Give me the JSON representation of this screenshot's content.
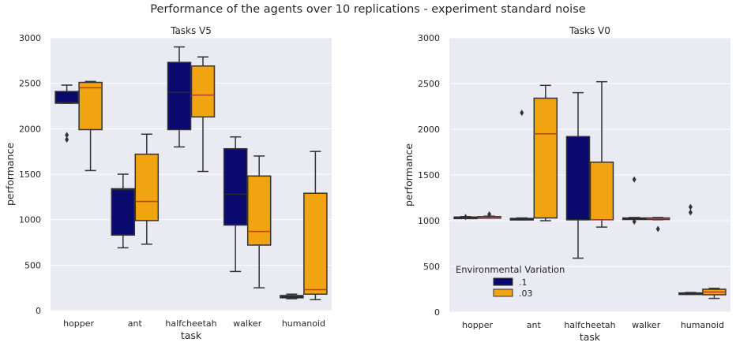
{
  "suptitle": "Performance of the agents over 10 replications - experiment standard noise",
  "colors": {
    "series1": "#0a0a6e",
    "series2": "#f0a510",
    "axes_bg": "#eaeaf2",
    "grid": "#ffffff",
    "median_series2": "#c0392b",
    "whisker": "#333333"
  },
  "legend": {
    "title": "Environmental Variation",
    "items": [
      {
        "label": ".1",
        "color": "#0a0a6e"
      },
      {
        "label": ".03",
        "color": "#f0a510"
      }
    ]
  },
  "chart_data": [
    {
      "type": "box",
      "title": "Tasks V5",
      "xlabel": "task",
      "ylabel": "performance",
      "ylim": [
        0,
        3000
      ],
      "yticks": [
        0,
        500,
        1000,
        1500,
        2000,
        2500,
        3000
      ],
      "categories": [
        "hopper",
        "ant",
        "halfcheetah",
        "walker",
        "humanoid"
      ],
      "series": [
        {
          "name": ".1",
          "boxes": [
            {
              "whislo": 2280,
              "q1": 2280,
              "med": 2290,
              "q3": 2410,
              "whishi": 2480,
              "fliers": [
                1880,
                1930
              ]
            },
            {
              "whislo": 690,
              "q1": 830,
              "med": 1330,
              "q3": 1340,
              "whishi": 1500,
              "fliers": []
            },
            {
              "whislo": 1800,
              "q1": 1990,
              "med": 2400,
              "q3": 2730,
              "whishi": 2900,
              "fliers": []
            },
            {
              "whislo": 430,
              "q1": 940,
              "med": 1280,
              "q3": 1780,
              "whishi": 1910,
              "fliers": []
            },
            {
              "whislo": 130,
              "q1": 140,
              "med": 150,
              "q3": 165,
              "whishi": 180,
              "fliers": []
            }
          ]
        },
        {
          "name": ".03",
          "boxes": [
            {
              "whislo": 1540,
              "q1": 1990,
              "med": 2450,
              "q3": 2510,
              "whishi": 2520,
              "fliers": []
            },
            {
              "whislo": 730,
              "q1": 990,
              "med": 1200,
              "q3": 1720,
              "whishi": 1940,
              "fliers": []
            },
            {
              "whislo": 1530,
              "q1": 2130,
              "med": 2370,
              "q3": 2690,
              "whishi": 2790,
              "fliers": []
            },
            {
              "whislo": 250,
              "q1": 720,
              "med": 870,
              "q3": 1480,
              "whishi": 1700,
              "fliers": []
            },
            {
              "whislo": 120,
              "q1": 180,
              "med": 230,
              "q3": 1290,
              "whishi": 1750,
              "fliers": []
            }
          ]
        }
      ]
    },
    {
      "type": "box",
      "title": "Tasks V0",
      "xlabel": "task",
      "ylabel": "performance",
      "ylim": [
        0,
        3000
      ],
      "yticks": [
        0,
        500,
        1000,
        1500,
        2000,
        2500,
        3000
      ],
      "categories": [
        "hopper",
        "ant",
        "halfcheetah",
        "walker",
        "humanoid"
      ],
      "legend_position": "lower-left",
      "series": [
        {
          "name": ".1",
          "boxes": [
            {
              "whislo": 1030,
              "q1": 1030,
              "med": 1035,
              "q3": 1040,
              "whishi": 1045,
              "fliers": [
                1040
              ]
            },
            {
              "whislo": 1010,
              "q1": 1010,
              "med": 1020,
              "q3": 1025,
              "whishi": 1030,
              "fliers": [
                2180
              ]
            },
            {
              "whislo": 590,
              "q1": 1010,
              "med": 1010,
              "q3": 1920,
              "whishi": 2400,
              "fliers": []
            },
            {
              "whislo": 1020,
              "q1": 1020,
              "med": 1025,
              "q3": 1030,
              "whishi": 1035,
              "fliers": [
                990,
                1450
              ]
            },
            {
              "whislo": 195,
              "q1": 195,
              "med": 200,
              "q3": 210,
              "whishi": 215,
              "fliers": [
                1090,
                1150
              ]
            }
          ]
        },
        {
          "name": ".03",
          "boxes": [
            {
              "whislo": 1030,
              "q1": 1030,
              "med": 1038,
              "q3": 1045,
              "whishi": 1050,
              "fliers": [
                1070
              ]
            },
            {
              "whislo": 1000,
              "q1": 1030,
              "med": 1950,
              "q3": 2340,
              "whishi": 2480,
              "fliers": []
            },
            {
              "whislo": 930,
              "q1": 1010,
              "med": 1010,
              "q3": 1640,
              "whishi": 2520,
              "fliers": []
            },
            {
              "whislo": 1010,
              "q1": 1015,
              "med": 1020,
              "q3": 1030,
              "whishi": 1035,
              "fliers": [
                910
              ]
            },
            {
              "whislo": 150,
              "q1": 190,
              "med": 220,
              "q3": 250,
              "whishi": 260,
              "fliers": []
            }
          ]
        }
      ]
    }
  ]
}
